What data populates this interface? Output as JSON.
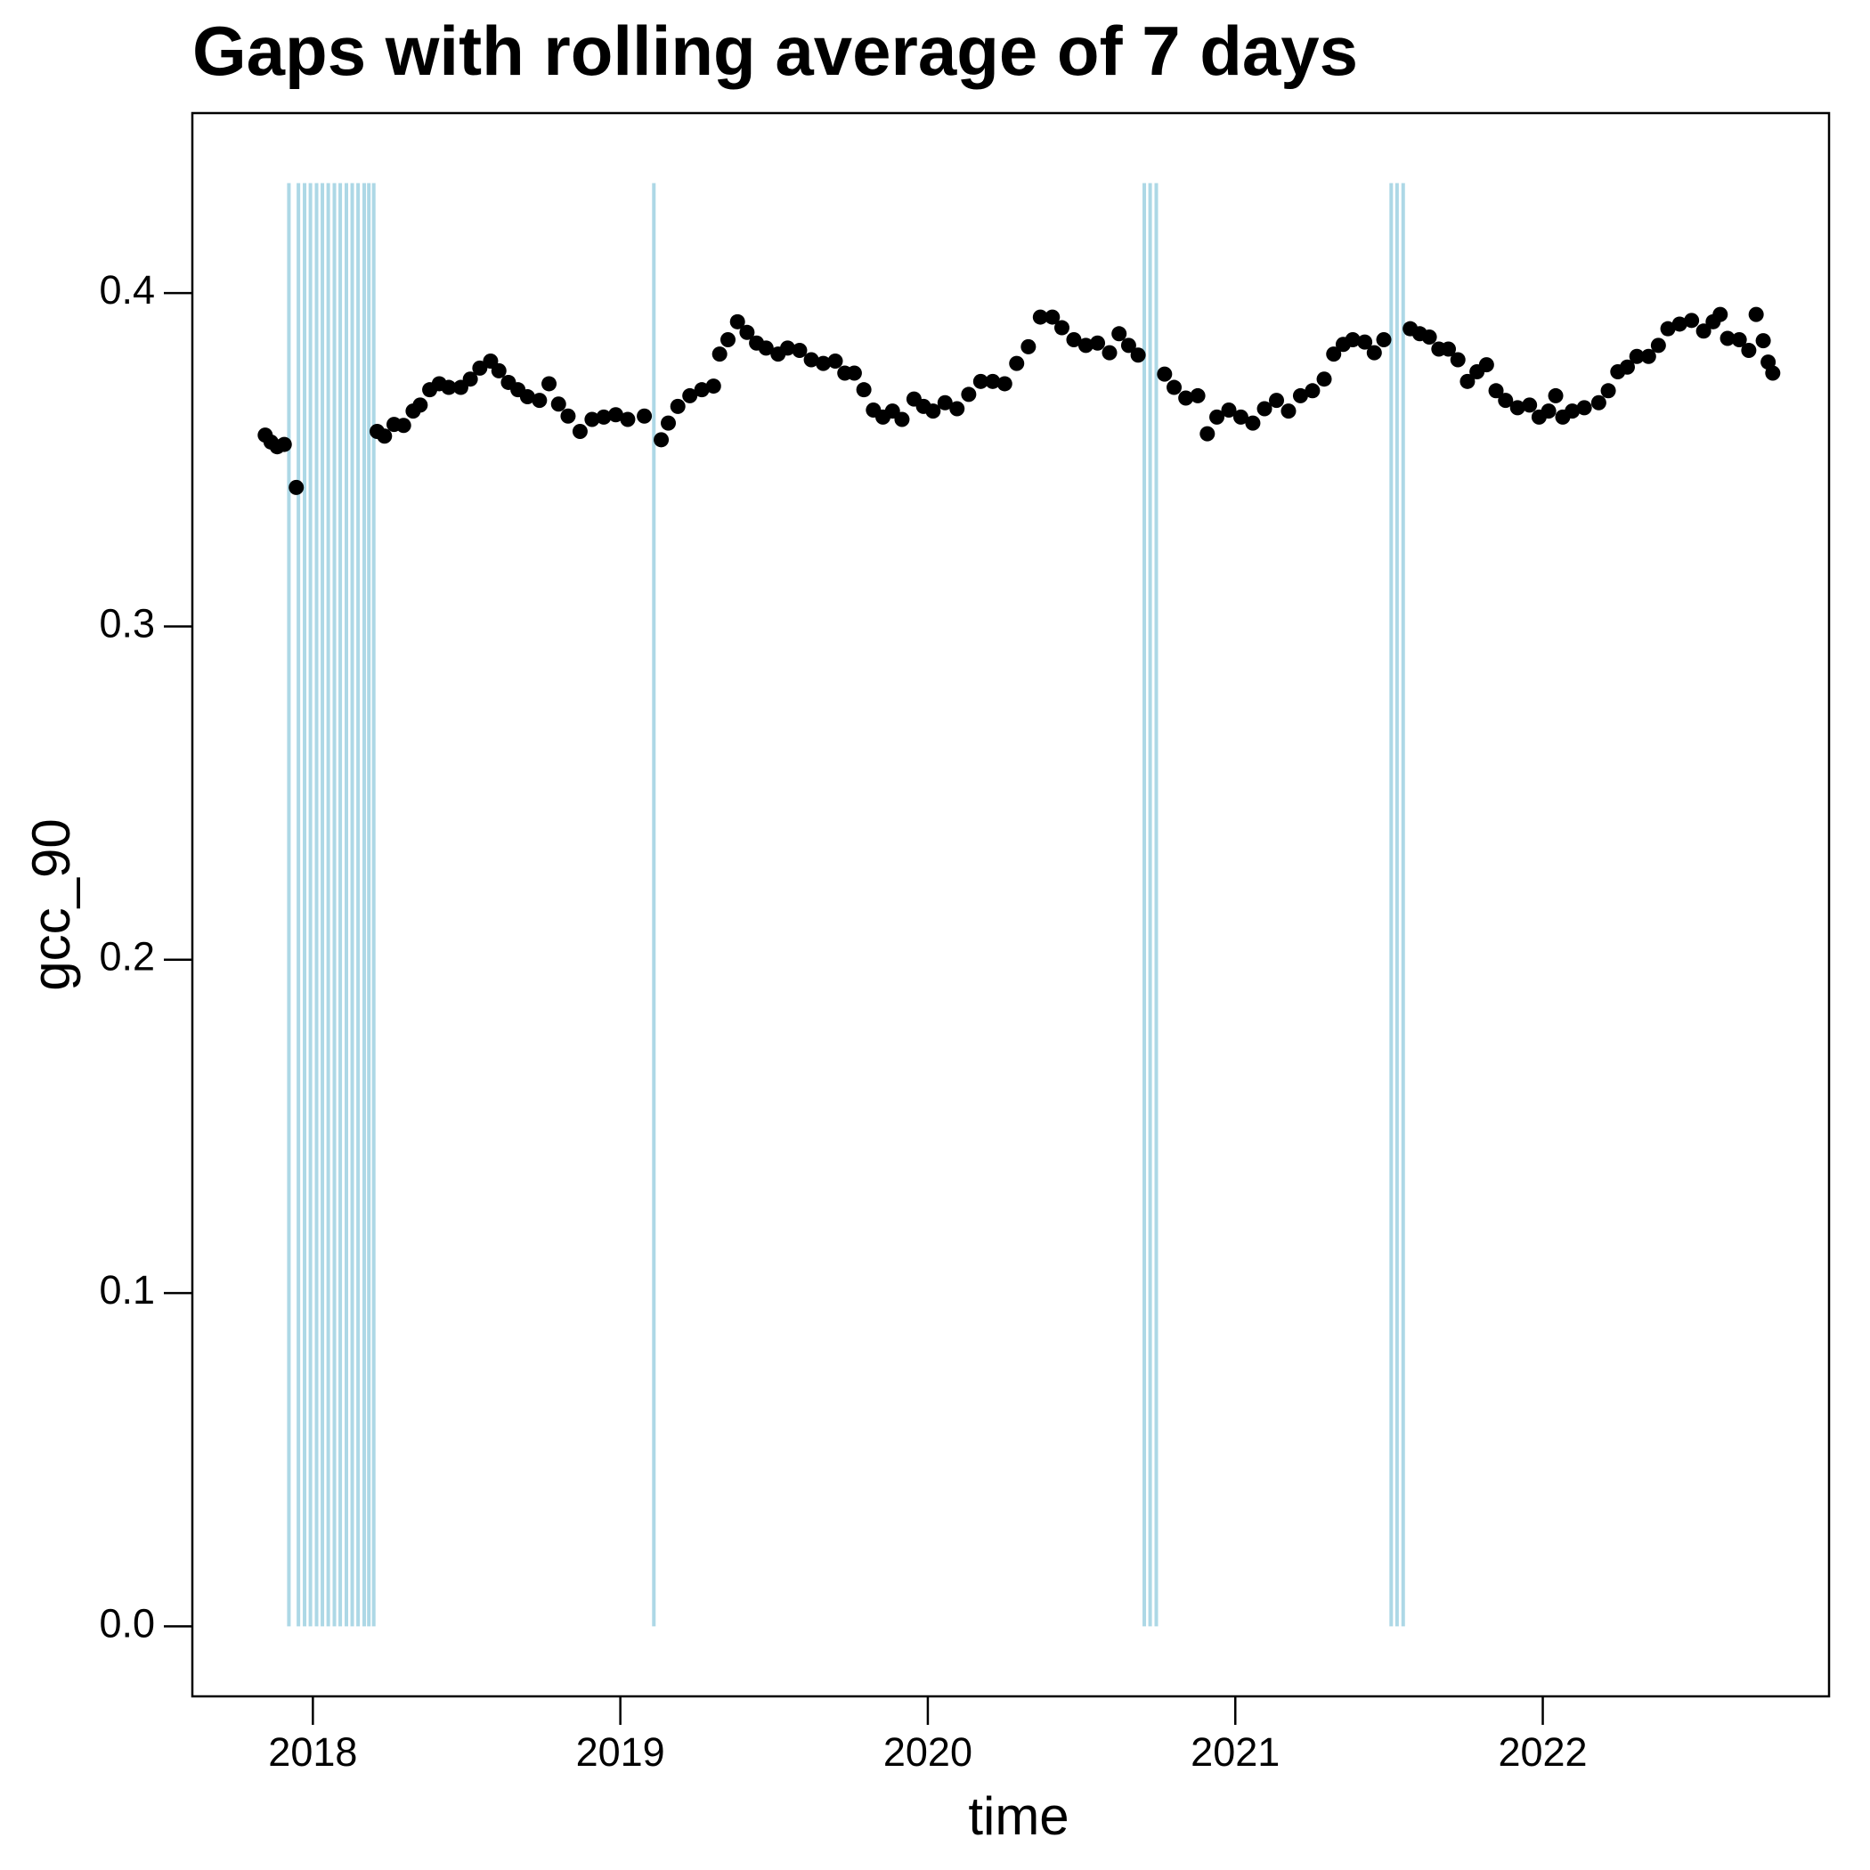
{
  "chart_data": {
    "type": "scatter",
    "title": "Gaps with rolling average of 7 days",
    "x_label": "time",
    "y_label": "gcc_90",
    "xlim": [
      2017.608,
      2022.931
    ],
    "ylim": [
      -0.021,
      0.454
    ],
    "xticks": [
      2018,
      2019,
      2020,
      2021,
      2022
    ],
    "yticks": [
      {
        "value": 0,
        "label": "0.0"
      },
      0.1,
      0.2,
      0.3,
      0.4
    ],
    "gap_lines": {
      "color": "#add8e6",
      "y_range": [
        0,
        0.433
      ],
      "x": [
        2017.922,
        2017.953,
        2017.973,
        2017.992,
        2018.012,
        2018.031,
        2018.05,
        2018.07,
        2018.089,
        2018.109,
        2018.128,
        2018.147,
        2018.167,
        2018.182,
        2018.198,
        2019.109,
        2020.704,
        2020.723,
        2020.743,
        2021.507,
        2021.526,
        2021.546
      ]
    },
    "series": [
      {
        "color": "#000000",
        "x": [
          2017.845,
          2017.864,
          2017.884,
          2017.907,
          2017.946,
          2018.209,
          2018.233,
          2018.264,
          2018.295,
          2018.326,
          2018.349,
          2018.38,
          2018.411,
          2018.442,
          2018.481,
          2018.512,
          2018.543,
          2018.578,
          2018.605,
          2018.636,
          2018.667,
          2018.698,
          2018.737,
          2018.768,
          2018.799,
          2018.83,
          2018.869,
          2018.908,
          2018.946,
          2018.985,
          2019.024,
          2019.078,
          2019.133,
          2019.156,
          2019.187,
          2019.226,
          2019.265,
          2019.303,
          2019.323,
          2019.35,
          2019.381,
          2019.412,
          2019.443,
          2019.474,
          2019.513,
          2019.544,
          2019.583,
          2019.621,
          2019.66,
          2019.699,
          2019.73,
          2019.761,
          2019.792,
          2019.823,
          2019.854,
          2019.885,
          2019.916,
          2019.955,
          2019.986,
          2020.017,
          2020.056,
          2020.095,
          2020.133,
          2020.172,
          2020.211,
          2020.25,
          2020.289,
          2020.327,
          2020.366,
          2020.405,
          2020.436,
          2020.475,
          2020.514,
          2020.552,
          2020.591,
          2020.622,
          2020.653,
          2020.684,
          2020.77,
          2020.801,
          2020.839,
          2020.878,
          2020.909,
          2020.94,
          2020.979,
          2021.018,
          2021.057,
          2021.095,
          2021.134,
          2021.173,
          2021.212,
          2021.251,
          2021.289,
          2021.32,
          2021.351,
          2021.382,
          2021.421,
          2021.452,
          2021.483,
          2021.569,
          2021.6,
          2021.631,
          2021.662,
          2021.693,
          2021.724,
          2021.755,
          2021.786,
          2021.817,
          2021.848,
          2021.879,
          2021.918,
          2021.957,
          2021.988,
          2022.019,
          2022.042,
          2022.065,
          2022.096,
          2022.135,
          2022.182,
          2022.213,
          2022.244,
          2022.275,
          2022.306,
          2022.344,
          2022.376,
          2022.407,
          2022.445,
          2022.484,
          2022.523,
          2022.554,
          2022.577,
          2022.601,
          2022.639,
          2022.67,
          2022.694,
          2022.717,
          2022.733,
          2022.748
        ],
        "values": [
          0.3574,
          0.3553,
          0.3539,
          0.3546,
          0.3417,
          0.3585,
          0.3571,
          0.3606,
          0.3603,
          0.3646,
          0.3664,
          0.371,
          0.3728,
          0.3717,
          0.3717,
          0.3742,
          0.3775,
          0.3796,
          0.3767,
          0.3732,
          0.371,
          0.3689,
          0.3678,
          0.3728,
          0.3667,
          0.3631,
          0.3585,
          0.3621,
          0.3628,
          0.3635,
          0.3621,
          0.3631,
          0.356,
          0.361,
          0.366,
          0.3692,
          0.371,
          0.3721,
          0.3817,
          0.386,
          0.3914,
          0.3882,
          0.385,
          0.3835,
          0.3817,
          0.3835,
          0.3828,
          0.38,
          0.3789,
          0.3796,
          0.376,
          0.376,
          0.371,
          0.3649,
          0.3628,
          0.3646,
          0.3621,
          0.3682,
          0.366,
          0.3646,
          0.3671,
          0.3653,
          0.3696,
          0.3735,
          0.3735,
          0.3728,
          0.3789,
          0.3839,
          0.3928,
          0.3928,
          0.3896,
          0.386,
          0.3843,
          0.385,
          0.3821,
          0.3878,
          0.3843,
          0.3814,
          0.3757,
          0.3717,
          0.3685,
          0.3692,
          0.3578,
          0.3628,
          0.3649,
          0.3628,
          0.361,
          0.3653,
          0.3678,
          0.3646,
          0.3692,
          0.3707,
          0.3742,
          0.3817,
          0.3846,
          0.386,
          0.3853,
          0.3821,
          0.386,
          0.3893,
          0.3878,
          0.3868,
          0.3832,
          0.3832,
          0.38,
          0.3735,
          0.3764,
          0.3785,
          0.3707,
          0.3678,
          0.3656,
          0.3664,
          0.3628,
          0.3646,
          0.3692,
          0.3628,
          0.3646,
          0.3656,
          0.3671,
          0.3707,
          0.3764,
          0.3778,
          0.381,
          0.381,
          0.3843,
          0.3893,
          0.3907,
          0.3918,
          0.3886,
          0.3914,
          0.3936,
          0.3864,
          0.386,
          0.3828,
          0.3936,
          0.3857,
          0.3793,
          0.376
        ]
      }
    ]
  }
}
